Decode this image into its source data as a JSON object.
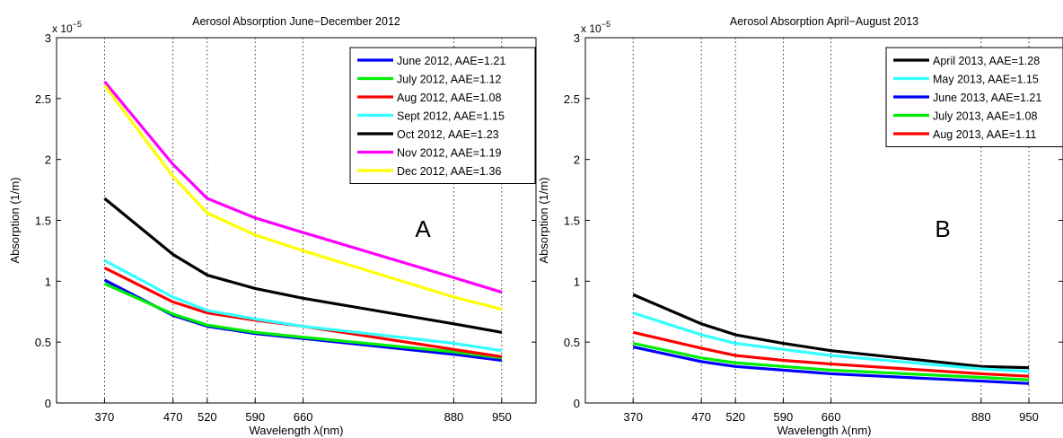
{
  "chart_data": [
    {
      "type": "line",
      "title": "Aerosol Absorption June−December 2012",
      "xlabel": "Wavelength λ(nm)",
      "ylabel": "Absorption (1/m)",
      "y_exponent_label": "x 10",
      "y_exponent_power": "−5",
      "panel_letter": "A",
      "x": [
        370,
        470,
        520,
        590,
        660,
        880,
        950
      ],
      "x_ticks": [
        "370",
        "470",
        "520",
        "590",
        "660",
        "880",
        "950"
      ],
      "xlim": [
        300,
        1000
      ],
      "ylim": [
        0,
        3
      ],
      "y_ticks": [
        "0",
        "0.5",
        "1",
        "1.5",
        "2",
        "2.5",
        "3"
      ],
      "y_tick_values": [
        0,
        0.5,
        1,
        1.5,
        2,
        2.5,
        3
      ],
      "grid": "vertical dotted lines at wavelengths",
      "legend_position": "top-right",
      "series": [
        {
          "name": "June 2012, AAE=1.21",
          "color": "#0000ff",
          "values": [
            1.01,
            0.72,
            0.63,
            0.57,
            0.53,
            0.4,
            0.35
          ]
        },
        {
          "name": "July 2012, AAE=1.12",
          "color": "#00ee00",
          "values": [
            0.98,
            0.73,
            0.64,
            0.58,
            0.54,
            0.42,
            0.37
          ]
        },
        {
          "name": "Aug 2012, AAE=1.08",
          "color": "#ff0000",
          "values": [
            1.11,
            0.83,
            0.74,
            0.68,
            0.63,
            0.44,
            0.38
          ]
        },
        {
          "name": "Sept 2012, AAE=1.15",
          "color": "#33ffff",
          "values": [
            1.17,
            0.87,
            0.76,
            0.69,
            0.63,
            0.49,
            0.43
          ]
        },
        {
          "name": "Oct 2012, AAE=1.23",
          "color": "#000000",
          "values": [
            1.68,
            1.22,
            1.05,
            0.94,
            0.86,
            0.65,
            0.58
          ]
        },
        {
          "name": "Nov 2012, AAE=1.19",
          "color": "#ff00ff",
          "values": [
            2.64,
            1.96,
            1.68,
            1.52,
            1.4,
            1.03,
            0.91
          ]
        },
        {
          "name": "Dec 2012, AAE=1.36",
          "color": "#ffff00",
          "values": [
            2.61,
            1.86,
            1.56,
            1.38,
            1.25,
            0.87,
            0.77
          ]
        }
      ]
    },
    {
      "type": "line",
      "title": "Aerosol Absorption April−August 2013",
      "xlabel": "Wavelength λ(nm)",
      "ylabel": "Absorption (1/m)",
      "y_exponent_label": "x 10",
      "y_exponent_power": "−5",
      "panel_letter": "B",
      "x": [
        370,
        470,
        520,
        590,
        660,
        880,
        950
      ],
      "x_ticks": [
        "370",
        "470",
        "520",
        "590",
        "660",
        "880",
        "950"
      ],
      "xlim": [
        300,
        1000
      ],
      "ylim": [
        0,
        3
      ],
      "y_ticks": [
        "0",
        "0.5",
        "1",
        "1.5",
        "2",
        "2.5",
        "3"
      ],
      "y_tick_values": [
        0,
        0.5,
        1,
        1.5,
        2,
        2.5,
        3
      ],
      "grid": "vertical dotted lines at wavelengths",
      "legend_position": "top-right",
      "series": [
        {
          "name": "April 2013, AAE=1.28",
          "color": "#000000",
          "values": [
            0.89,
            0.65,
            0.56,
            0.49,
            0.43,
            0.3,
            0.29
          ]
        },
        {
          "name": "May 2013, AAE=1.15",
          "color": "#33ffff",
          "values": [
            0.74,
            0.56,
            0.49,
            0.44,
            0.39,
            0.28,
            0.26
          ]
        },
        {
          "name": "June 2013, AAE=1.21",
          "color": "#0000ff",
          "values": [
            0.46,
            0.34,
            0.3,
            0.27,
            0.24,
            0.18,
            0.16
          ]
        },
        {
          "name": "July 2013, AAE=1.08",
          "color": "#00ee00",
          "values": [
            0.49,
            0.37,
            0.33,
            0.3,
            0.27,
            0.21,
            0.19
          ]
        },
        {
          "name": "Aug 2013, AAE=1.11",
          "color": "#ff0000",
          "values": [
            0.58,
            0.45,
            0.39,
            0.35,
            0.32,
            0.24,
            0.22
          ]
        }
      ]
    }
  ]
}
